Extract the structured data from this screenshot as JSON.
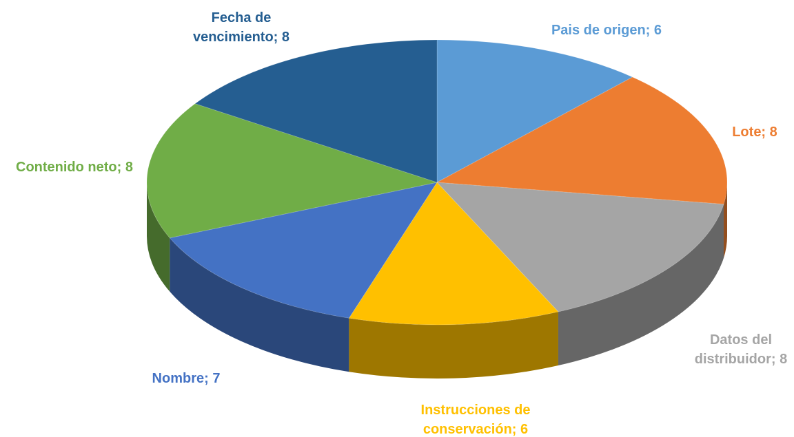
{
  "chart_data": {
    "type": "pie3d",
    "values": [
      6,
      8,
      8,
      6,
      7,
      8,
      8
    ],
    "value_labels": [
      "Pais de origen; 6",
      "Lote; 8",
      "Datos del distribuidor; 8",
      "Instrucciones de conservación; 6",
      "Nombre; 7",
      "Contenido neto; 8",
      "Fecha de vencimiento; 8"
    ],
    "colors": [
      "#5b9bd5",
      "#ed7d31",
      "#a5a5a5",
      "#ffc000",
      "#4472c4",
      "#70ad47",
      "#255e91"
    ]
  }
}
